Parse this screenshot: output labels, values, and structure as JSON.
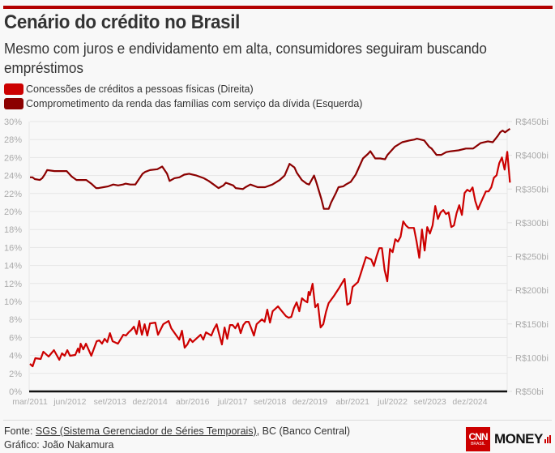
{
  "header": {
    "title": "Cenário do crédito no Brasil",
    "subtitle": "Mesmo com juros e endividamento em alta, consumidores seguiram buscando empréstimos"
  },
  "legend": [
    {
      "label": "Concessões de créditos a pessoas físicas (Direita)",
      "color": "#cc0000"
    },
    {
      "label": "Comprometimento da renda das famílias com serviço da dívida (Esquerda)",
      "color": "#8b0000"
    }
  ],
  "footer": {
    "source_prefix": "Fonte: ",
    "source_link": "SGS (Sistema Gerenciador de Séries Temporais)",
    "source_suffix": ", BC (Banco Central)",
    "credit": "Gráfico: João Nakamura"
  },
  "logo": {
    "brand": "CNN",
    "sub": "BRASIL",
    "product": "MONEY"
  },
  "chart_data": {
    "type": "line",
    "title": "Cenário do crédito no Brasil",
    "x_start": "mar/2011",
    "x_unit": "month",
    "xticks": [
      {
        "m": 0,
        "label": "mar/2011"
      },
      {
        "m": 15,
        "label": "jun/2012"
      },
      {
        "m": 30,
        "label": "set/2013"
      },
      {
        "m": 45,
        "label": "dez/2014"
      },
      {
        "m": 61,
        "label": "abr/2016"
      },
      {
        "m": 76,
        "label": "jul/2017"
      },
      {
        "m": 90,
        "label": "set/2018"
      },
      {
        "m": 105,
        "label": "dez/2019"
      },
      {
        "m": 121,
        "label": "abr/2021"
      },
      {
        "m": 136,
        "label": "jul/2022"
      },
      {
        "m": 150,
        "label": "set/2023"
      },
      {
        "m": 165,
        "label": "dez/2024"
      }
    ],
    "x_range": [
      0,
      180
    ],
    "left_axis": {
      "ylim": [
        0,
        30
      ],
      "ticks": [
        "0%",
        "2%",
        "4%",
        "6%",
        "8%",
        "10%",
        "12%",
        "14%",
        "16%",
        "18%",
        "20%",
        "22%",
        "24%",
        "26%",
        "28%",
        "30%"
      ],
      "values": [
        0,
        2,
        4,
        6,
        8,
        10,
        12,
        14,
        16,
        18,
        20,
        22,
        24,
        26,
        28,
        30
      ]
    },
    "right_axis": {
      "ylim": [
        50,
        450
      ],
      "ticks": [
        "R$50bi",
        "R$100bi",
        "R$150bi",
        "R$200bi",
        "R$250bi",
        "R$300bi",
        "R$350bi",
        "R$400bi",
        "R$450bi"
      ],
      "values": [
        50,
        100,
        150,
        200,
        250,
        300,
        350,
        400,
        450
      ]
    },
    "grid": true,
    "series": [
      {
        "name": "Comprometimento da renda das famílias com serviço da dívida (Esquerda)",
        "axis": "left",
        "color": "#8b0000",
        "points": [
          [
            0,
            23.8
          ],
          [
            1,
            23.8
          ],
          [
            2,
            23.6
          ],
          [
            4,
            23.5
          ],
          [
            5,
            23.7
          ],
          [
            6,
            24.1
          ],
          [
            7,
            24.6
          ],
          [
            10,
            24.5
          ],
          [
            13,
            24.5
          ],
          [
            15,
            24.5
          ],
          [
            17,
            23.9
          ],
          [
            19,
            23.5
          ],
          [
            21,
            23.5
          ],
          [
            23,
            23.5
          ],
          [
            25,
            23.1
          ],
          [
            27,
            22.6
          ],
          [
            28,
            22.6
          ],
          [
            30,
            22.7
          ],
          [
            32,
            22.8
          ],
          [
            34,
            23.0
          ],
          [
            36,
            22.9
          ],
          [
            38,
            23.0
          ],
          [
            39,
            23.1
          ],
          [
            41,
            23.0
          ],
          [
            43,
            23.0
          ],
          [
            46,
            24.2
          ],
          [
            47,
            24.4
          ],
          [
            49,
            24.6
          ],
          [
            52,
            24.7
          ],
          [
            54,
            25.0
          ],
          [
            56,
            24.2
          ],
          [
            57,
            23.4
          ],
          [
            59,
            23.7
          ],
          [
            61,
            23.8
          ],
          [
            63,
            24.1
          ],
          [
            65,
            24.2
          ],
          [
            68,
            24.0
          ],
          [
            71,
            23.7
          ],
          [
            73,
            23.4
          ],
          [
            75,
            23.0
          ],
          [
            77,
            22.6
          ],
          [
            79,
            22.9
          ],
          [
            80,
            23.2
          ],
          [
            83,
            22.9
          ],
          [
            84,
            22.6
          ],
          [
            87,
            22.5
          ],
          [
            88,
            22.7
          ],
          [
            90,
            23.0
          ],
          [
            93,
            22.7
          ],
          [
            96,
            22.7
          ],
          [
            99,
            23.0
          ],
          [
            102,
            23.5
          ],
          [
            104,
            24.0
          ],
          [
            106,
            25.3
          ],
          [
            108,
            24.9
          ],
          [
            109,
            24.3
          ],
          [
            111,
            23.5
          ],
          [
            113,
            23.1
          ],
          [
            114,
            23.0
          ],
          [
            116,
            24.0
          ],
          [
            117,
            23.2
          ],
          [
            119,
            21.4
          ],
          [
            120,
            20.3
          ],
          [
            122,
            20.3
          ],
          [
            123,
            21.0
          ],
          [
            125,
            22.1
          ],
          [
            126,
            22.7
          ],
          [
            128,
            22.8
          ],
          [
            129,
            23.0
          ],
          [
            131,
            23.3
          ],
          [
            133,
            24.1
          ],
          [
            136,
            25.9
          ],
          [
            138,
            26.4
          ],
          [
            139,
            26.7
          ],
          [
            141,
            25.9
          ],
          [
            143,
            25.9
          ],
          [
            145,
            25.8
          ],
          [
            146,
            26.3
          ],
          [
            149,
            27.2
          ],
          [
            152,
            27.7
          ],
          [
            155,
            27.9
          ],
          [
            157,
            28.0
          ],
          [
            158,
            28.1
          ],
          [
            161,
            27.9
          ],
          [
            163,
            27.2
          ],
          [
            164,
            27.0
          ],
          [
            166,
            26.3
          ],
          [
            168,
            26.3
          ],
          [
            170,
            26.6
          ],
          [
            172,
            26.7
          ],
          [
            175,
            26.8
          ],
          [
            178,
            27.0
          ],
          [
            181,
            27.0
          ],
          [
            184,
            27.6
          ],
          [
            187,
            27.8
          ],
          [
            189,
            27.7
          ],
          [
            191,
            28.4
          ],
          [
            192,
            28.8
          ],
          [
            193,
            29.0
          ],
          [
            194,
            28.8
          ],
          [
            196,
            29.2
          ]
        ]
      },
      {
        "name": "Concessões de créditos a pessoas físicas (Direita)",
        "axis": "right",
        "color": "#cc0000",
        "points": [
          [
            0,
            90.8
          ],
          [
            1,
            87.2
          ],
          [
            2,
            99.2
          ],
          [
            4,
            98.0
          ],
          [
            5,
            108.8
          ],
          [
            7,
            101.6
          ],
          [
            9,
            111.2
          ],
          [
            11,
            96.8
          ],
          [
            12,
            106.4
          ],
          [
            13,
            102.8
          ],
          [
            14,
            111.2
          ],
          [
            15,
            102.8
          ],
          [
            17,
            104.0
          ],
          [
            18,
            113.6
          ],
          [
            18.5,
            107.6
          ],
          [
            19,
            120.8
          ],
          [
            20,
            112.4
          ],
          [
            21,
            120.8
          ],
          [
            23,
            102.8
          ],
          [
            25,
            124.4
          ],
          [
            26,
            125.6
          ],
          [
            27,
            120.8
          ],
          [
            28,
            128.0
          ],
          [
            29,
            123.2
          ],
          [
            30,
            136.4
          ],
          [
            31,
            124.4
          ],
          [
            33,
            120.8
          ],
          [
            35,
            134.0
          ],
          [
            36,
            132.8
          ],
          [
            37,
            137.6
          ],
          [
            38,
            141.2
          ],
          [
            39,
            146.0
          ],
          [
            40,
            135.2
          ],
          [
            41,
            154.4
          ],
          [
            41.5,
            142.4
          ],
          [
            42,
            134.0
          ],
          [
            43,
            149.6
          ],
          [
            44,
            132.8
          ],
          [
            45,
            150.8
          ],
          [
            47,
            152.0
          ],
          [
            48,
            134.0
          ],
          [
            50,
            149.6
          ],
          [
            51,
            152.0
          ],
          [
            52,
            154.4
          ],
          [
            53,
            143.6
          ],
          [
            56,
            126.8
          ],
          [
            57,
            140.0
          ],
          [
            58,
            114.8
          ],
          [
            59,
            119.6
          ],
          [
            60,
            128.0
          ],
          [
            61,
            123.2
          ],
          [
            63,
            130.4
          ],
          [
            64,
            134.0
          ],
          [
            65,
            126.8
          ],
          [
            66,
            137.6
          ],
          [
            68,
            132.8
          ],
          [
            69,
            142.4
          ],
          [
            70,
            149.6
          ],
          [
            71,
            134.0
          ],
          [
            72,
            119.6
          ],
          [
            73,
            144.8
          ],
          [
            74,
            128.0
          ],
          [
            75,
            148.4
          ],
          [
            76,
            148.4
          ],
          [
            77,
            143.6
          ],
          [
            78,
            150.8
          ],
          [
            79,
            136.4
          ],
          [
            80,
            148.4
          ],
          [
            81,
            153.2
          ],
          [
            82,
            153.2
          ],
          [
            83,
            143.6
          ],
          [
            84,
            132.8
          ],
          [
            85,
            149.6
          ],
          [
            86,
            153.2
          ],
          [
            87,
            156.8
          ],
          [
            88,
            153.2
          ],
          [
            89,
            171.2
          ],
          [
            90,
            152.0
          ],
          [
            91,
            168.8
          ],
          [
            93,
            176.0
          ],
          [
            94,
            171.2
          ],
          [
            96,
            161.6
          ],
          [
            97,
            159.2
          ],
          [
            98,
            160.4
          ],
          [
            99,
            173.6
          ],
          [
            100,
            182.0
          ],
          [
            101,
            168.8
          ],
          [
            102,
            188.0
          ],
          [
            103,
            184.4
          ],
          [
            104,
            182.0
          ],
          [
            104.5,
            197.6
          ],
          [
            105,
            192.8
          ],
          [
            106,
            209.6
          ],
          [
            107,
            174.8
          ],
          [
            108,
            179.6
          ],
          [
            109,
            144.8
          ],
          [
            110,
            149.6
          ],
          [
            111,
            167.6
          ],
          [
            112,
            180.8
          ],
          [
            114,
            191.6
          ],
          [
            116,
            203.6
          ],
          [
            118,
            216.8
          ],
          [
            119,
            178.4
          ],
          [
            120,
            180.8
          ],
          [
            121,
            204.8
          ],
          [
            123,
            212.0
          ],
          [
            124,
            224.0
          ],
          [
            126,
            249.2
          ],
          [
            128,
            245.6
          ],
          [
            129,
            236.0
          ],
          [
            130,
            250.4
          ],
          [
            131,
            262.4
          ],
          [
            132,
            262.4
          ],
          [
            133,
            230.0
          ],
          [
            134,
            213.2
          ],
          [
            135,
            261.2
          ],
          [
            136,
            256.4
          ],
          [
            137,
            275.6
          ],
          [
            138,
            272.0
          ],
          [
            139,
            279.2
          ],
          [
            140,
            302.0
          ],
          [
            141,
            296.0
          ],
          [
            142,
            292.4
          ],
          [
            143,
            292.4
          ],
          [
            144,
            292.4
          ],
          [
            145,
            272.0
          ],
          [
            146,
            248.0
          ],
          [
            147,
            290.0
          ],
          [
            148,
            258.8
          ],
          [
            149,
            293.6
          ],
          [
            150,
            284.0
          ],
          [
            151,
            296.0
          ],
          [
            152,
            324.8
          ],
          [
            153,
            305.6
          ],
          [
            154,
            315.2
          ],
          [
            155,
            318.8
          ],
          [
            156,
            312.8
          ],
          [
            157,
            315.2
          ],
          [
            158,
            293.6
          ],
          [
            159,
            296.0
          ],
          [
            160,
            314.0
          ],
          [
            161,
            326.0
          ],
          [
            162,
            311.6
          ],
          [
            163,
            344.0
          ],
          [
            164,
            348.8
          ],
          [
            165,
            346.4
          ],
          [
            166,
            352.4
          ],
          [
            167,
            332.0
          ],
          [
            168,
            320.0
          ],
          [
            170,
            338.0
          ],
          [
            171,
            346.4
          ],
          [
            172,
            346.4
          ],
          [
            173,
            352.4
          ],
          [
            174,
            366.8
          ],
          [
            175,
            370.4
          ],
          [
            176,
            388.4
          ],
          [
            177,
            396.8
          ],
          [
            178,
            378.8
          ],
          [
            179,
            405.2
          ],
          [
            180,
            359.6
          ]
        ]
      }
    ]
  }
}
